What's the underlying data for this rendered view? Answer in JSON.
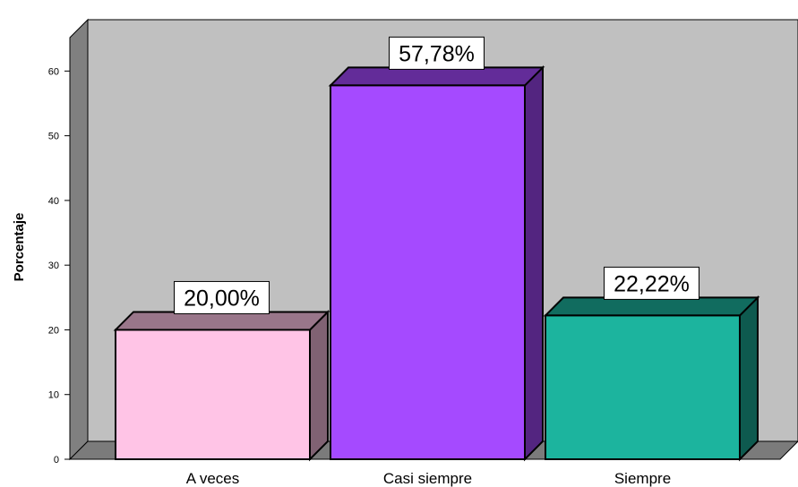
{
  "chart_data": {
    "type": "bar",
    "categories": [
      "A veces",
      "Casi siempre",
      "Siempre"
    ],
    "values": [
      20.0,
      57.78,
      22.22
    ],
    "data_labels": [
      "20,00%",
      "57,78%",
      "22,22%"
    ],
    "bar_colors": [
      "#ffc4e6",
      "#a54aff",
      "#1cb49e"
    ],
    "ylabel": "Porcentaje",
    "ylim": [
      0,
      66
    ],
    "yticks": [
      0,
      10,
      20,
      30,
      40,
      50,
      60
    ],
    "grid": false,
    "legend": false,
    "style": "3d"
  },
  "colors": {
    "wall": "#c0c0c0",
    "wall_side": "#808080",
    "floor": "#7b7b7b"
  }
}
